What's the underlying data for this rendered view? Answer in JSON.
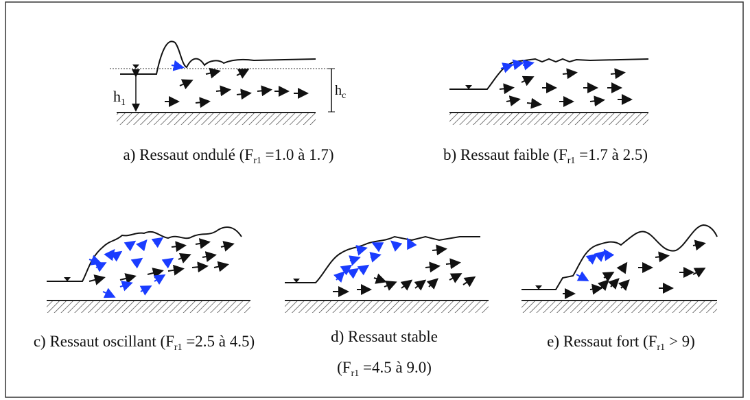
{
  "panels": [
    {
      "caption": {
        "prefix": "a) Ressaut ondulé (F",
        "sub": "r1",
        "suffix": " =1.0 à 1.7)"
      }
    },
    {
      "caption": {
        "prefix": "b) Ressaut faible (F",
        "sub": "r1",
        "suffix": " =1.7 à 2.5)"
      }
    },
    {
      "caption": {
        "prefix": "c) Ressaut oscillant (F",
        "sub": "r1",
        "suffix": " =2.5 à 4.5)"
      }
    },
    {
      "caption": {
        "line1": "d) Ressaut stable",
        "prefix": "(F",
        "sub": "r1",
        "suffix": " =4.5 à 9.0)"
      }
    },
    {
      "caption": {
        "prefix": "e) Ressaut fort (F",
        "sub": "r1",
        "suffix": " > 9)"
      }
    }
  ],
  "labels": {
    "h1": {
      "base": "h",
      "sub": "1"
    },
    "hc": {
      "base": "h",
      "sub": "c"
    }
  }
}
